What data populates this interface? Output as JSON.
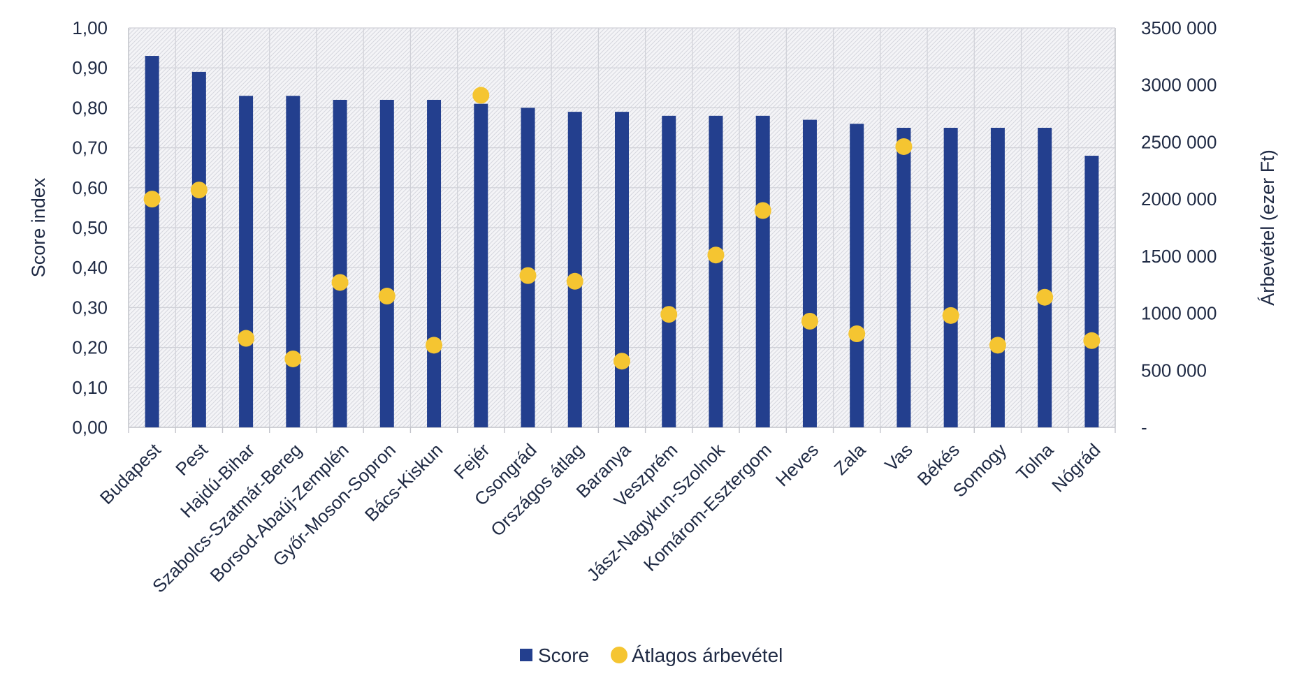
{
  "chart_data": {
    "type": "bar",
    "title": "",
    "categories": [
      "Budapest",
      "Pest",
      "Hajdú-Bihar",
      "Szabolcs-Szatmár-Bereg",
      "Borsod-Abaúj-Zemplén",
      "Győr-Moson-Sopron",
      "Bács-Kiskun",
      "Fejér",
      "Csongrád",
      "Országos átlag",
      "Baranya",
      "Veszprém",
      "Jász-Nagykun-Szolnok",
      "Komárom-Esztergom",
      "Heves",
      "Zala",
      "Vas",
      "Békés",
      "Somogy",
      "Tolna",
      "Nógrád"
    ],
    "series": [
      {
        "name": "Score",
        "type": "bar",
        "axis": "left",
        "color": "#233f8e",
        "values": [
          0.93,
          0.89,
          0.83,
          0.83,
          0.82,
          0.82,
          0.82,
          0.81,
          0.8,
          0.79,
          0.79,
          0.78,
          0.78,
          0.78,
          0.77,
          0.76,
          0.75,
          0.75,
          0.75,
          0.75,
          0.68
        ]
      },
      {
        "name": "Átlagos árbevétel",
        "type": "scatter",
        "axis": "right",
        "color": "#f5c531",
        "values": [
          2000000,
          2080000,
          780000,
          600000,
          1270000,
          1150000,
          720000,
          2910000,
          1330000,
          1280000,
          580000,
          990000,
          1510000,
          1900000,
          930000,
          820000,
          2460000,
          980000,
          720000,
          1140000,
          760000
        ]
      }
    ],
    "left_axis": {
      "label": "Score index",
      "ylim": [
        0,
        1
      ],
      "ticks": [
        0,
        0.1,
        0.2,
        0.3,
        0.4,
        0.5,
        0.6,
        0.7,
        0.8,
        0.9,
        1.0
      ],
      "tick_labels": [
        "0,00",
        "0,10",
        "0,20",
        "0,30",
        "0,40",
        "0,50",
        "0,60",
        "0,70",
        "0,80",
        "0,90",
        "1,00"
      ]
    },
    "right_axis": {
      "label": "Árbevétel (ezer Ft)",
      "ylim": [
        0,
        3500000
      ],
      "ticks": [
        0,
        500000,
        1000000,
        1500000,
        2000000,
        2500000,
        3000000,
        3500000
      ],
      "tick_labels": [
        "-",
        "500 000",
        "1000 000",
        "1500 000",
        "2000 000",
        "2500 000",
        "3000 000",
        "3500 000"
      ]
    },
    "xlabel": "",
    "legend": {
      "position": "bottom",
      "entries": [
        "Score",
        "Átlagos árbevétel"
      ]
    },
    "grid": true
  }
}
